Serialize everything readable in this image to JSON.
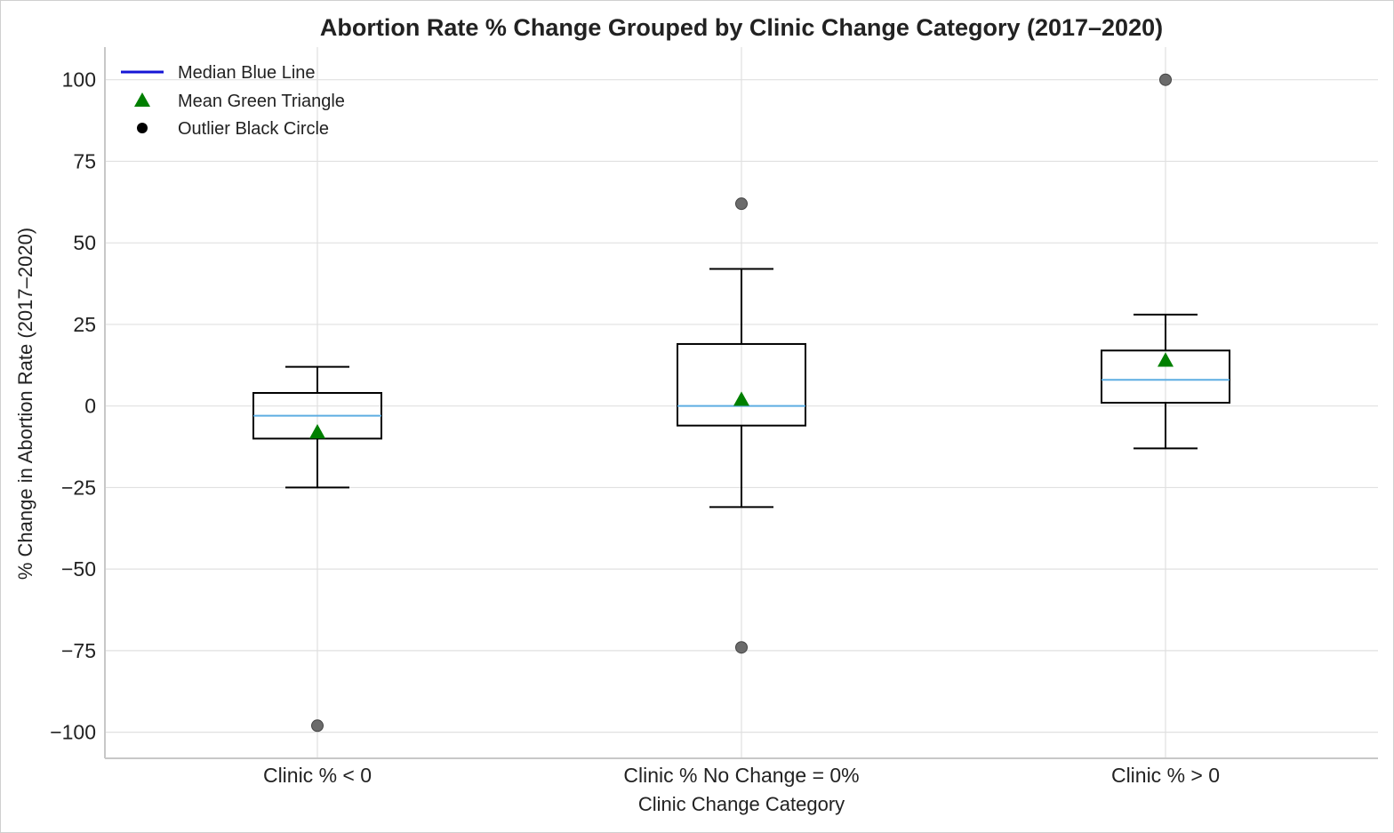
{
  "chart_data": {
    "type": "box",
    "title": "Abortion Rate % Change Grouped by Clinic Change Category (2017–2020)",
    "xlabel": "Clinic Change Category",
    "ylabel": "% Change in Abortion Rate (2017–2020)",
    "ylim": [
      -108,
      110
    ],
    "yticks": [
      100,
      75,
      50,
      25,
      0,
      -25,
      -50,
      -75,
      -100
    ],
    "ytick_labels": [
      "100",
      "75",
      "50",
      "25",
      "0",
      "−25",
      "−50",
      "−75",
      "−100"
    ],
    "grid": true,
    "legend_position": "top-left",
    "legend": [
      {
        "label": "Median Blue Line",
        "marker": "line",
        "color": "#1515d6"
      },
      {
        "label": "Mean Green Triangle",
        "marker": "triangle",
        "color": "#007f00"
      },
      {
        "label": "Outlier Black Circle",
        "marker": "circle",
        "color": "#000000"
      }
    ],
    "colors": {
      "median": "#5dade2",
      "mean": "#008000",
      "outlier": "#6b6b6b",
      "box": "#000000",
      "grid": "#e0e0e0"
    },
    "categories": [
      "Clinic % < 0",
      "Clinic % No Change = 0%",
      "Clinic % > 0"
    ],
    "boxes": [
      {
        "category": "Clinic % < 0",
        "whisker_low": -25,
        "q1": -10,
        "median": -3,
        "q3": 4,
        "whisker_high": 12,
        "mean": -8,
        "outliers": [
          -98
        ]
      },
      {
        "category": "Clinic % No Change = 0%",
        "whisker_low": -31,
        "q1": -6,
        "median": 0,
        "q3": 19,
        "whisker_high": 42,
        "mean": 2,
        "outliers": [
          62,
          -74
        ]
      },
      {
        "category": "Clinic % > 0",
        "whisker_low": -13,
        "q1": 1,
        "median": 8,
        "q3": 17,
        "whisker_high": 28,
        "mean": 14,
        "outliers": [
          100
        ]
      }
    ]
  }
}
